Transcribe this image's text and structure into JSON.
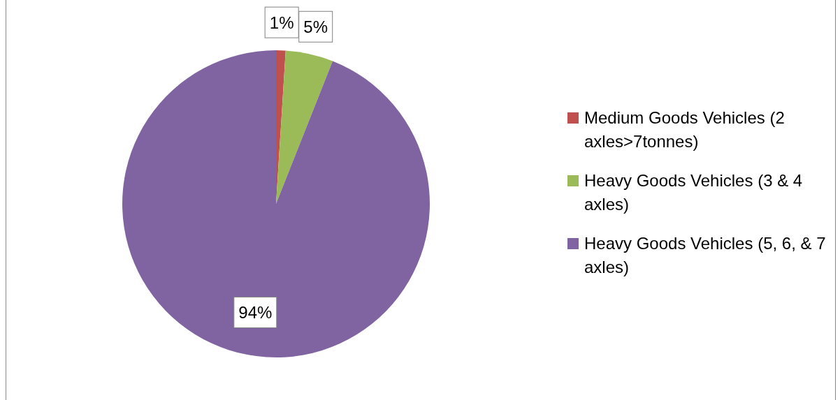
{
  "chart_data": {
    "type": "pie",
    "categories": [
      "Medium Goods Vehicles (2 axles>7tonnes)",
      "Heavy Goods Vehicles (3 & 4 axles)",
      "Heavy Goods Vehicles (5, 6, & 7 axles)"
    ],
    "values": [
      1,
      5,
      94
    ],
    "colors": [
      "#c0504d",
      "#9bbb59",
      "#8064a2"
    ],
    "value_labels": [
      "1%",
      "5%",
      "94%"
    ],
    "legend": "right"
  }
}
